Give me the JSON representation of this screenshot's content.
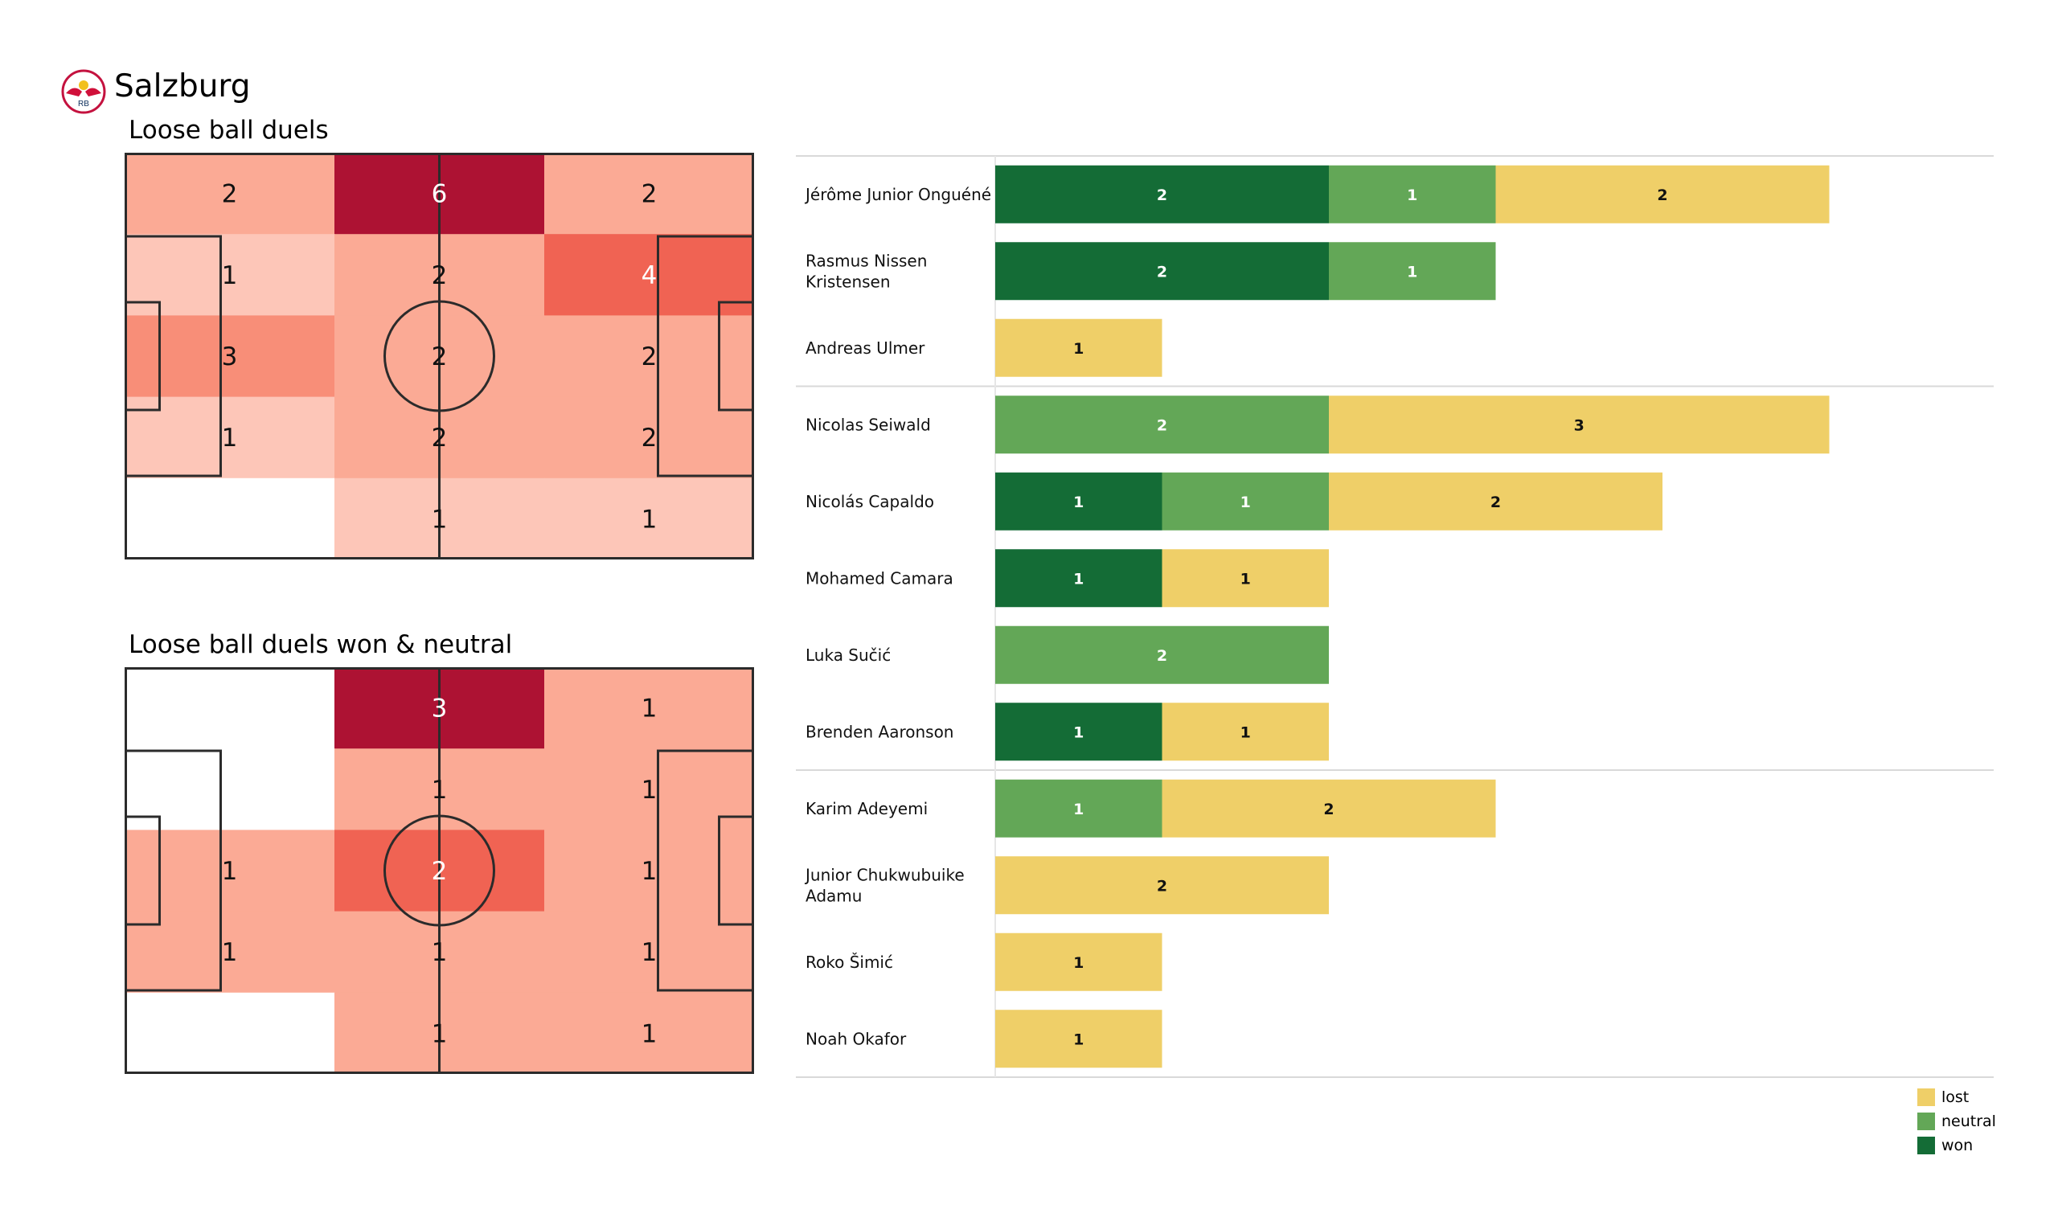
{
  "team": {
    "name": "Salzburg",
    "logo_text": "RB"
  },
  "colors": {
    "won": "#146c36",
    "neutral": "#63a757",
    "lost": "#efcf68",
    "heat_low": "#ffffff",
    "heat_high": "#ad1233",
    "pitch_line": "#2b2b2b"
  },
  "heatmaps": [
    {
      "id": "pitch1",
      "title": "Loose ball duels",
      "max": 6,
      "grid": [
        [
          2,
          6,
          2
        ],
        [
          1,
          2,
          4
        ],
        [
          3,
          2,
          2
        ],
        [
          1,
          2,
          2
        ],
        [
          0,
          1,
          1
        ]
      ]
    },
    {
      "id": "pitch2",
      "title": "Loose ball duels won & neutral",
      "max": 3,
      "grid": [
        [
          0,
          3,
          1
        ],
        [
          0,
          1,
          1
        ],
        [
          1,
          2,
          1
        ],
        [
          1,
          1,
          1
        ],
        [
          0,
          1,
          1
        ]
      ]
    }
  ],
  "chart_data": {
    "type": "bar",
    "orientation": "horizontal",
    "stacked": true,
    "categories": [
      "Jérôme Junior Onguéné",
      "Rasmus Nissen Kristensen",
      "Andreas Ulmer",
      "Nicolas Seiwald",
      "Nicolás Capaldo",
      "Mohamed Camara",
      "Luka Sučić",
      "Brenden  Aaronson",
      "Karim Adeyemi",
      "Junior Chukwubuike Adamu",
      "Roko Šimić",
      "Noah Okafor"
    ],
    "category_lines": [
      [
        "Jérôme Junior Onguéné"
      ],
      [
        "Rasmus Nissen",
        "Kristensen"
      ],
      [
        "Andreas Ulmer"
      ],
      [
        "Nicolas Seiwald"
      ],
      [
        "Nicolás Capaldo"
      ],
      [
        "Mohamed Camara"
      ],
      [
        "Luka Sučić"
      ],
      [
        "Brenden  Aaronson"
      ],
      [
        "Karim Adeyemi"
      ],
      [
        "Junior Chukwubuike",
        "Adamu"
      ],
      [
        "Roko Šimić"
      ],
      [
        "Noah Okafor"
      ]
    ],
    "groups": [
      3,
      5,
      4
    ],
    "series": [
      {
        "name": "won",
        "values": [
          2,
          2,
          0,
          0,
          1,
          1,
          0,
          1,
          0,
          0,
          0,
          0
        ]
      },
      {
        "name": "neutral",
        "values": [
          1,
          1,
          0,
          2,
          1,
          0,
          2,
          0,
          1,
          0,
          0,
          0
        ]
      },
      {
        "name": "lost",
        "values": [
          2,
          0,
          1,
          3,
          2,
          1,
          0,
          1,
          2,
          2,
          1,
          1
        ]
      }
    ],
    "xlim": [
      0,
      6
    ],
    "legend": [
      "lost",
      "neutral",
      "won"
    ],
    "legend_position": "bottom-right"
  }
}
